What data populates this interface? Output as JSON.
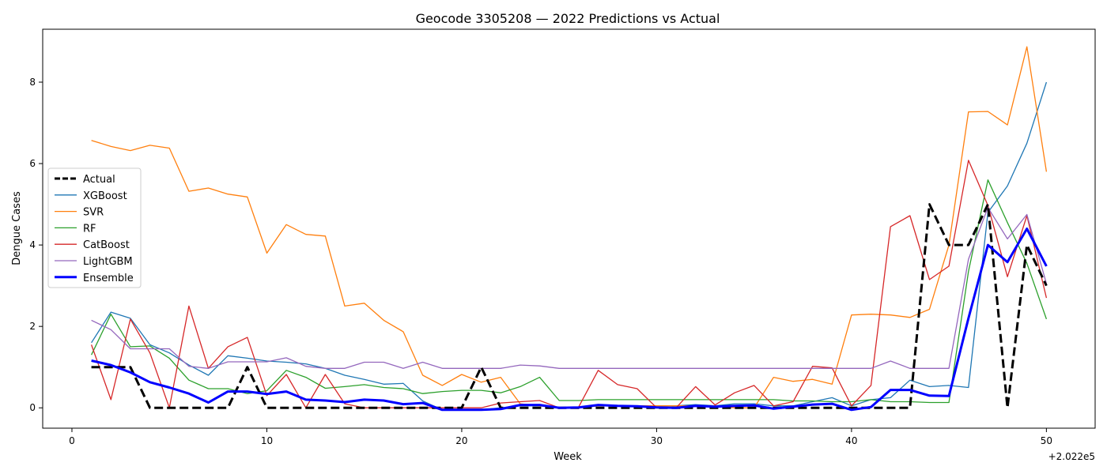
{
  "chart_data": {
    "type": "line",
    "title": "Geocode 3305208 — 2022 Predictions vs Actual",
    "xlabel": "Week",
    "ylabel": "Dengue Cases",
    "x_offset_label": "+2.022e5",
    "xlim": [
      -1.5,
      52.5
    ],
    "ylim": [
      -0.5,
      9.3
    ],
    "xticks": [
      0,
      10,
      20,
      30,
      40,
      50
    ],
    "yticks": [
      0,
      2,
      4,
      6,
      8
    ],
    "grid": false,
    "legend_position": "center-left",
    "x": [
      1,
      2,
      3,
      4,
      5,
      6,
      7,
      8,
      9,
      10,
      11,
      12,
      13,
      14,
      15,
      16,
      17,
      18,
      19,
      20,
      21,
      22,
      23,
      24,
      25,
      26,
      27,
      28,
      29,
      30,
      31,
      32,
      33,
      34,
      35,
      36,
      37,
      38,
      39,
      40,
      41,
      42,
      43,
      44,
      45,
      46,
      47,
      48,
      49,
      50
    ],
    "series": [
      {
        "name": "Actual",
        "color": "#000000",
        "dash": true,
        "width": 3,
        "values": [
          1,
          1,
          1,
          0,
          0,
          0,
          0,
          0,
          1,
          0,
          0,
          0,
          0,
          0,
          0,
          0,
          0,
          0,
          0,
          0,
          1,
          0,
          0,
          0,
          0,
          0,
          0,
          0,
          0,
          0,
          0,
          0,
          0,
          0,
          0,
          0,
          0,
          0,
          0,
          0,
          0,
          0,
          0,
          5,
          4,
          4,
          5,
          0,
          4,
          3
        ]
      },
      {
        "name": "XGBoost",
        "color": "#1f77b4",
        "dash": false,
        "width": 1.3,
        "values": [
          1.6,
          2.35,
          2.2,
          1.55,
          1.35,
          1.05,
          0.8,
          1.28,
          1.22,
          1.15,
          1.12,
          1.08,
          0.97,
          0.8,
          0.7,
          0.58,
          0.6,
          0.17,
          -0.05,
          -0.05,
          -0.05,
          0.0,
          0.05,
          0.05,
          0.0,
          0.0,
          0.05,
          0.05,
          0.05,
          0.05,
          0.05,
          0.08,
          0.05,
          0.1,
          0.1,
          0.05,
          0.05,
          0.15,
          0.25,
          0.05,
          0.2,
          0.25,
          0.68,
          0.52,
          0.55,
          0.5,
          4.8,
          5.45,
          6.5,
          8.0
        ]
      },
      {
        "name": "SVR",
        "color": "#ff7f0e",
        "dash": false,
        "width": 1.3,
        "values": [
          6.57,
          6.42,
          6.32,
          6.45,
          6.38,
          5.32,
          5.4,
          5.25,
          5.18,
          3.8,
          4.5,
          4.26,
          4.22,
          2.5,
          2.57,
          2.15,
          1.87,
          0.8,
          0.55,
          0.82,
          0.63,
          0.75,
          0.1,
          0.05,
          0.0,
          0.0,
          0.05,
          0.05,
          0.05,
          0.05,
          0.05,
          0.05,
          0.05,
          0.0,
          0.0,
          0.75,
          0.65,
          0.7,
          0.58,
          2.28,
          2.3,
          2.28,
          2.22,
          2.42,
          4.0,
          7.27,
          7.28,
          6.95,
          8.87,
          5.8
        ]
      },
      {
        "name": "RF",
        "color": "#2ca02c",
        "dash": false,
        "width": 1.3,
        "values": [
          1.3,
          2.3,
          1.5,
          1.52,
          1.22,
          0.68,
          0.47,
          0.47,
          0.35,
          0.42,
          0.92,
          0.75,
          0.48,
          0.52,
          0.57,
          0.5,
          0.47,
          0.35,
          0.4,
          0.43,
          0.43,
          0.37,
          0.52,
          0.75,
          0.18,
          0.18,
          0.2,
          0.2,
          0.2,
          0.2,
          0.2,
          0.2,
          0.2,
          0.2,
          0.2,
          0.2,
          0.17,
          0.17,
          0.15,
          0.15,
          0.2,
          0.15,
          0.15,
          0.13,
          0.13,
          3.35,
          5.6,
          4.55,
          3.55,
          2.18
        ]
      },
      {
        "name": "CatBoost",
        "color": "#d62728",
        "dash": false,
        "width": 1.3,
        "values": [
          1.55,
          0.2,
          2.18,
          1.35,
          0.0,
          2.5,
          0.97,
          1.5,
          1.73,
          0.3,
          0.82,
          0.0,
          0.82,
          0.1,
          0.0,
          0.0,
          0.0,
          0.0,
          0.0,
          0.0,
          0.0,
          0.12,
          0.15,
          0.18,
          0.0,
          0.02,
          0.92,
          0.57,
          0.47,
          0.0,
          0.0,
          0.52,
          0.07,
          0.37,
          0.55,
          0.05,
          0.15,
          1.02,
          0.98,
          0.05,
          0.55,
          4.45,
          4.72,
          3.15,
          3.48,
          6.08,
          4.97,
          3.22,
          4.72,
          2.7
        ]
      },
      {
        "name": "LightGBM",
        "color": "#9467bd",
        "dash": false,
        "width": 1.3,
        "values": [
          2.15,
          1.92,
          1.45,
          1.45,
          1.45,
          1.02,
          0.97,
          1.13,
          1.13,
          1.13,
          1.23,
          1.02,
          0.97,
          0.97,
          1.12,
          1.12,
          0.97,
          1.12,
          0.97,
          0.97,
          0.97,
          0.97,
          1.05,
          1.03,
          0.97,
          0.97,
          0.97,
          0.97,
          0.97,
          0.97,
          0.97,
          0.97,
          0.97,
          0.97,
          0.97,
          0.97,
          0.97,
          0.97,
          0.97,
          0.97,
          0.97,
          1.15,
          0.97,
          0.97,
          0.97,
          3.65,
          4.92,
          4.15,
          4.75,
          3.05
        ]
      },
      {
        "name": "Ensemble",
        "color": "#0000ff",
        "dash": false,
        "width": 3,
        "values": [
          1.16,
          1.05,
          0.87,
          0.63,
          0.5,
          0.35,
          0.13,
          0.4,
          0.4,
          0.34,
          0.4,
          0.2,
          0.18,
          0.14,
          0.2,
          0.18,
          0.09,
          0.12,
          -0.05,
          -0.05,
          -0.05,
          -0.03,
          0.07,
          0.07,
          0.0,
          0.01,
          0.07,
          0.05,
          0.04,
          0.01,
          0.0,
          0.05,
          0.03,
          0.05,
          0.06,
          -0.02,
          0.03,
          0.08,
          0.1,
          -0.05,
          0.02,
          0.44,
          0.44,
          0.3,
          0.29,
          2.2,
          4.0,
          3.58,
          4.4,
          3.48
        ]
      }
    ]
  }
}
